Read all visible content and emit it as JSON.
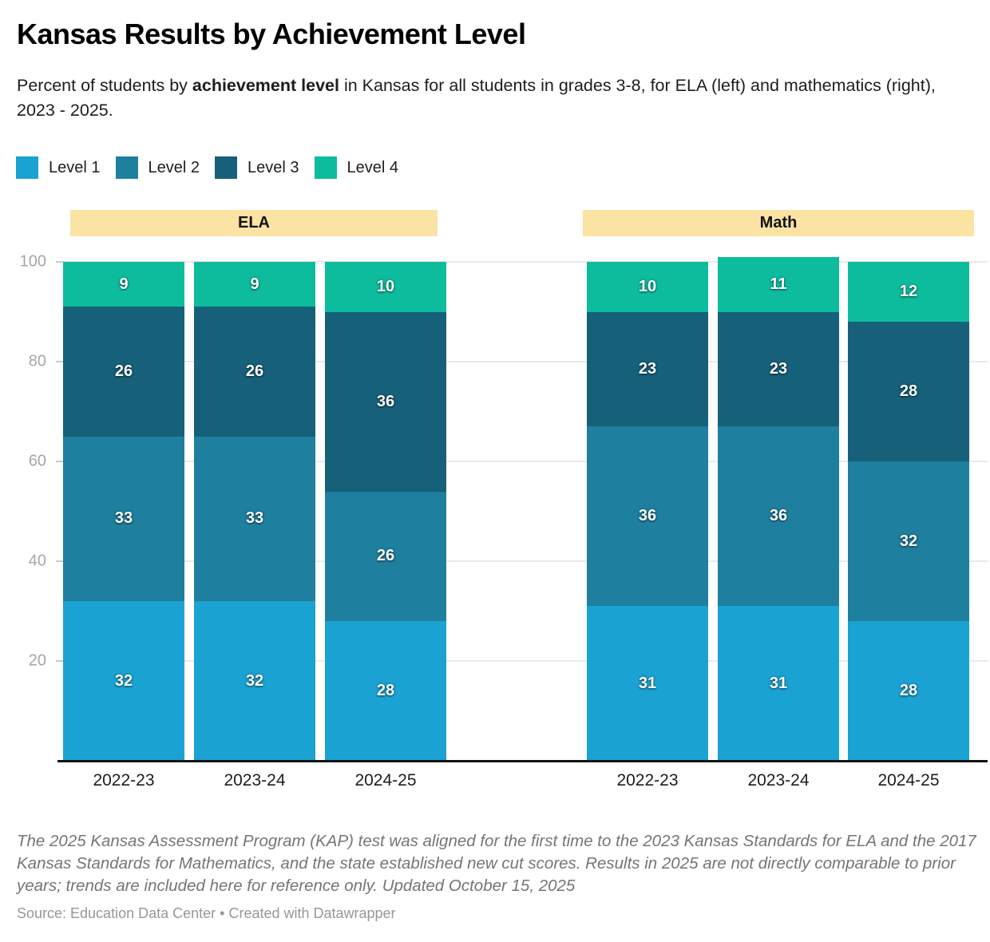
{
  "header": {
    "title": "Kansas Results by Achievement Level",
    "subtitle": {
      "before": "Percent of students by ",
      "bold": "achievement level",
      "after": " in Kansas for all students in grades 3-8, for ELA (left) and mathematics (right), 2023 - 2025."
    }
  },
  "legend": {
    "items": [
      {
        "label": "Level 1",
        "color": "#1aa2d2"
      },
      {
        "label": "Level 2",
        "color": "#1e7f9f"
      },
      {
        "label": "Level 3",
        "color": "#16607a"
      },
      {
        "label": "Level 4",
        "color": "#0dbc9c"
      }
    ]
  },
  "chart_data": {
    "type": "bar",
    "stacked": true,
    "title": "Kansas Results by Achievement Level",
    "ylim": [
      0,
      100
    ],
    "yticks": [
      20,
      40,
      60,
      80,
      100
    ],
    "grid": true,
    "group_header_color": "#fbe3a3",
    "levels": [
      "Level 1",
      "Level 2",
      "Level 3",
      "Level 4"
    ],
    "level_colors": [
      "#1aa2d2",
      "#1e7f9f",
      "#16607a",
      "#0dbc9c"
    ],
    "groups": [
      {
        "label": "ELA",
        "categories": [
          "2022-23",
          "2023-24",
          "2024-25"
        ],
        "stacks": [
          [
            32,
            33,
            26,
            9
          ],
          [
            32,
            33,
            26,
            9
          ],
          [
            28,
            26,
            36,
            10
          ]
        ]
      },
      {
        "label": "Math",
        "categories": [
          "2022-23",
          "2023-24",
          "2024-25"
        ],
        "stacks": [
          [
            31,
            36,
            23,
            10
          ],
          [
            31,
            36,
            23,
            11
          ],
          [
            28,
            32,
            28,
            12
          ]
        ]
      }
    ]
  },
  "footer": {
    "note": "The 2025 Kansas Assessment Program (KAP) test was aligned for the first time to the 2023 Kansas Standards for ELA and the 2017 Kansas Standards for Mathematics, and the state established new cut scores. Results in 2025 are not directly comparable to prior years; trends are included here for reference only. Updated October 15, 2025",
    "source": "Source: Education Data Center • Created with Datawrapper"
  }
}
